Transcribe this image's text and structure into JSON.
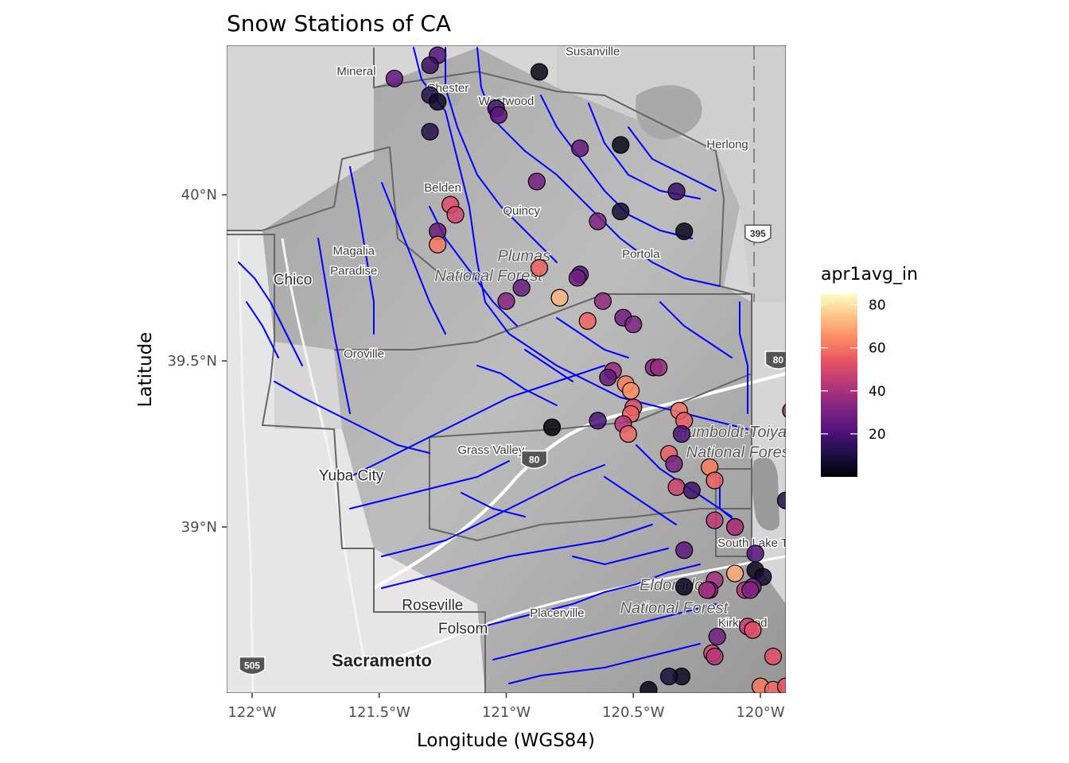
{
  "chart_data": {
    "type": "map-scatter",
    "title": "Snow Stations of CA",
    "xlabel": "Longitude (WGS84)",
    "ylabel": "Latitude",
    "xlim": [
      -122.1,
      -119.9
    ],
    "ylim": [
      38.5,
      40.45
    ],
    "xticks": [
      {
        "value": -122.0,
        "label": "122°W"
      },
      {
        "value": -121.5,
        "label": "121.5°W"
      },
      {
        "value": -121.0,
        "label": "121°W"
      },
      {
        "value": -120.5,
        "label": "120.5°W"
      },
      {
        "value": -120.0,
        "label": "120°W"
      }
    ],
    "yticks": [
      {
        "value": 39.0,
        "label": "39°N"
      },
      {
        "value": 39.5,
        "label": "39.5°N"
      },
      {
        "value": 40.0,
        "label": "40°N"
      }
    ],
    "legend": {
      "title": "apr1avg_in",
      "position": "right",
      "colormap": "magma",
      "range": [
        0,
        85
      ],
      "breaks": [
        {
          "value": 80,
          "label": "80"
        },
        {
          "value": 60,
          "label": "60"
        },
        {
          "value": 40,
          "label": "40"
        },
        {
          "value": 20,
          "label": "20"
        }
      ]
    },
    "basemap_labels": [
      {
        "name": "Susanville",
        "lon": -120.66,
        "lat": 40.42,
        "size": "normal"
      },
      {
        "name": "Mineral",
        "lon": -121.59,
        "lat": 40.36,
        "size": "normal"
      },
      {
        "name": "Chester",
        "lon": -121.23,
        "lat": 40.31,
        "size": "normal"
      },
      {
        "name": "Westwood",
        "lon": -121.0,
        "lat": 40.27,
        "size": "normal"
      },
      {
        "name": "Herlong",
        "lon": -120.13,
        "lat": 40.14,
        "size": "normal"
      },
      {
        "name": "Belden",
        "lon": -121.25,
        "lat": 40.01,
        "size": "normal"
      },
      {
        "name": "Quincy",
        "lon": -120.94,
        "lat": 39.94,
        "size": "normal"
      },
      {
        "name": "Magalia",
        "lon": -121.6,
        "lat": 39.82,
        "size": "normal"
      },
      {
        "name": "Portola",
        "lon": -120.47,
        "lat": 39.81,
        "size": "normal"
      },
      {
        "name": "Chico",
        "lon": -121.84,
        "lat": 39.73,
        "size": "big"
      },
      {
        "name": "Paradise",
        "lon": -121.6,
        "lat": 39.76,
        "size": "normal"
      },
      {
        "name": "Oroville",
        "lon": -121.56,
        "lat": 39.51,
        "size": "normal"
      },
      {
        "name": "Grass Valley",
        "lon": -121.06,
        "lat": 39.22,
        "size": "normal"
      },
      {
        "name": "Yuba City",
        "lon": -121.61,
        "lat": 39.14,
        "size": "big"
      },
      {
        "name": "South Lake Tahoe",
        "lon": -119.98,
        "lat": 38.94,
        "size": "normal"
      },
      {
        "name": "Roseville",
        "lon": -121.29,
        "lat": 38.75,
        "size": "big"
      },
      {
        "name": "Placerville",
        "lon": -120.8,
        "lat": 38.73,
        "size": "normal"
      },
      {
        "name": "Folsom",
        "lon": -121.17,
        "lat": 38.68,
        "size": "big"
      },
      {
        "name": "Sacramento",
        "lon": -121.49,
        "lat": 38.58,
        "size": "xl"
      },
      {
        "name": "Kirkwood",
        "lon": -120.07,
        "lat": 38.7,
        "size": "normal"
      }
    ],
    "forest_labels": [
      {
        "name": "Plumas",
        "lon": -120.93,
        "lat": 39.8
      },
      {
        "name": "National Forest",
        "lon": -121.07,
        "lat": 39.74
      },
      {
        "name": "Humboldt-Toiyabe",
        "lon": -120.08,
        "lat": 39.27
      },
      {
        "name": "National Forest",
        "lon": -120.08,
        "lat": 39.21
      },
      {
        "name": "Eldorado",
        "lon": -120.35,
        "lat": 38.81
      },
      {
        "name": "National Forest",
        "lon": -120.34,
        "lat": 38.74
      }
    ],
    "shields": [
      {
        "label": "395",
        "lon": -120.01,
        "lat": 39.88,
        "kind": "us"
      },
      {
        "label": "80",
        "lon": -119.93,
        "lat": 39.5,
        "kind": "interstate"
      },
      {
        "label": "505",
        "lon": -122.0,
        "lat": 38.58,
        "kind": "interstate"
      },
      {
        "label": "80",
        "lon": -120.89,
        "lat": 39.2,
        "kind": "interstate"
      }
    ],
    "stations": [
      {
        "lon": -121.27,
        "lat": 40.42,
        "value": 22
      },
      {
        "lon": -121.3,
        "lat": 40.39,
        "value": 16
      },
      {
        "lon": -121.44,
        "lat": 40.35,
        "value": 25
      },
      {
        "lon": -120.87,
        "lat": 40.37,
        "value": 3
      },
      {
        "lon": -121.3,
        "lat": 40.3,
        "value": 12
      },
      {
        "lon": -121.27,
        "lat": 40.28,
        "value": 6
      },
      {
        "lon": -121.04,
        "lat": 40.26,
        "value": 18
      },
      {
        "lon": -121.03,
        "lat": 40.24,
        "value": 24
      },
      {
        "lon": -121.3,
        "lat": 40.19,
        "value": 12
      },
      {
        "lon": -120.71,
        "lat": 40.14,
        "value": 26
      },
      {
        "lon": -120.55,
        "lat": 40.15,
        "value": 3
      },
      {
        "lon": -120.88,
        "lat": 40.04,
        "value": 29
      },
      {
        "lon": -120.33,
        "lat": 40.01,
        "value": 17
      },
      {
        "lon": -121.22,
        "lat": 39.97,
        "value": 52
      },
      {
        "lon": -121.2,
        "lat": 39.94,
        "value": 49
      },
      {
        "lon": -120.55,
        "lat": 39.95,
        "value": 8
      },
      {
        "lon": -120.64,
        "lat": 39.92,
        "value": 31
      },
      {
        "lon": -120.3,
        "lat": 39.89,
        "value": 4
      },
      {
        "lon": -121.27,
        "lat": 39.89,
        "value": 27
      },
      {
        "lon": -121.27,
        "lat": 39.85,
        "value": 61
      },
      {
        "lon": -120.87,
        "lat": 39.78,
        "value": 56
      },
      {
        "lon": -120.71,
        "lat": 39.76,
        "value": 23
      },
      {
        "lon": -120.72,
        "lat": 39.75,
        "value": 28
      },
      {
        "lon": -120.94,
        "lat": 39.72,
        "value": 27
      },
      {
        "lon": -121.0,
        "lat": 39.68,
        "value": 32
      },
      {
        "lon": -120.79,
        "lat": 39.69,
        "value": 72
      },
      {
        "lon": -120.62,
        "lat": 39.68,
        "value": 35
      },
      {
        "lon": -120.68,
        "lat": 39.62,
        "value": 57
      },
      {
        "lon": -120.54,
        "lat": 39.63,
        "value": 28
      },
      {
        "lon": -120.5,
        "lat": 39.61,
        "value": 31
      },
      {
        "lon": -120.42,
        "lat": 39.48,
        "value": 32
      },
      {
        "lon": -120.4,
        "lat": 39.48,
        "value": 37
      },
      {
        "lon": -120.58,
        "lat": 39.47,
        "value": 36
      },
      {
        "lon": -120.6,
        "lat": 39.45,
        "value": 25
      },
      {
        "lon": -120.53,
        "lat": 39.43,
        "value": 62
      },
      {
        "lon": -120.51,
        "lat": 39.41,
        "value": 65
      },
      {
        "lon": -120.5,
        "lat": 39.36,
        "value": 51
      },
      {
        "lon": -120.51,
        "lat": 39.34,
        "value": 56
      },
      {
        "lon": -120.32,
        "lat": 39.35,
        "value": 60
      },
      {
        "lon": -120.3,
        "lat": 39.32,
        "value": 55
      },
      {
        "lon": -120.64,
        "lat": 39.32,
        "value": 20
      },
      {
        "lon": -120.82,
        "lat": 39.3,
        "value": 1
      },
      {
        "lon": -120.54,
        "lat": 39.31,
        "value": 42
      },
      {
        "lon": -120.52,
        "lat": 39.28,
        "value": 58
      },
      {
        "lon": -120.31,
        "lat": 39.28,
        "value": 21
      },
      {
        "lon": -119.88,
        "lat": 39.35,
        "value": 35
      },
      {
        "lon": -120.36,
        "lat": 39.22,
        "value": 56
      },
      {
        "lon": -120.34,
        "lat": 39.19,
        "value": 30
      },
      {
        "lon": -120.2,
        "lat": 39.18,
        "value": 62
      },
      {
        "lon": -120.18,
        "lat": 39.14,
        "value": 57
      },
      {
        "lon": -120.33,
        "lat": 39.12,
        "value": 48
      },
      {
        "lon": -120.27,
        "lat": 39.11,
        "value": 18
      },
      {
        "lon": -119.9,
        "lat": 39.08,
        "value": 12
      },
      {
        "lon": -120.18,
        "lat": 39.02,
        "value": 44
      },
      {
        "lon": -120.1,
        "lat": 39.0,
        "value": 60
      },
      {
        "lon": -120.1,
        "lat": 39.0,
        "value": 38
      },
      {
        "lon": -120.3,
        "lat": 38.93,
        "value": 24
      },
      {
        "lon": -120.02,
        "lat": 38.92,
        "value": 22
      },
      {
        "lon": -120.02,
        "lat": 38.87,
        "value": 5
      },
      {
        "lon": -119.99,
        "lat": 38.85,
        "value": 7
      },
      {
        "lon": -120.1,
        "lat": 38.86,
        "value": 70
      },
      {
        "lon": -120.18,
        "lat": 38.84,
        "value": 39
      },
      {
        "lon": -120.2,
        "lat": 38.81,
        "value": 32
      },
      {
        "lon": -120.21,
        "lat": 38.81,
        "value": 39
      },
      {
        "lon": -120.3,
        "lat": 38.82,
        "value": 4
      },
      {
        "lon": -120.06,
        "lat": 38.81,
        "value": 42
      },
      {
        "lon": -120.03,
        "lat": 38.82,
        "value": 27
      },
      {
        "lon": -120.04,
        "lat": 38.81,
        "value": 32
      },
      {
        "lon": -120.05,
        "lat": 38.7,
        "value": 45
      },
      {
        "lon": -120.03,
        "lat": 38.69,
        "value": 53
      },
      {
        "lon": -120.17,
        "lat": 38.67,
        "value": 28
      },
      {
        "lon": -120.19,
        "lat": 38.62,
        "value": 50
      },
      {
        "lon": -120.18,
        "lat": 38.61,
        "value": 43
      },
      {
        "lon": -119.95,
        "lat": 38.61,
        "value": 52
      },
      {
        "lon": -120.31,
        "lat": 38.55,
        "value": 5
      },
      {
        "lon": -120.36,
        "lat": 38.55,
        "value": 10
      },
      {
        "lon": -120.44,
        "lat": 38.51,
        "value": 3
      },
      {
        "lon": -120.0,
        "lat": 38.52,
        "value": 61
      },
      {
        "lon": -119.95,
        "lat": 38.51,
        "value": 58
      },
      {
        "lon": -119.9,
        "lat": 38.52,
        "value": 54
      }
    ]
  }
}
